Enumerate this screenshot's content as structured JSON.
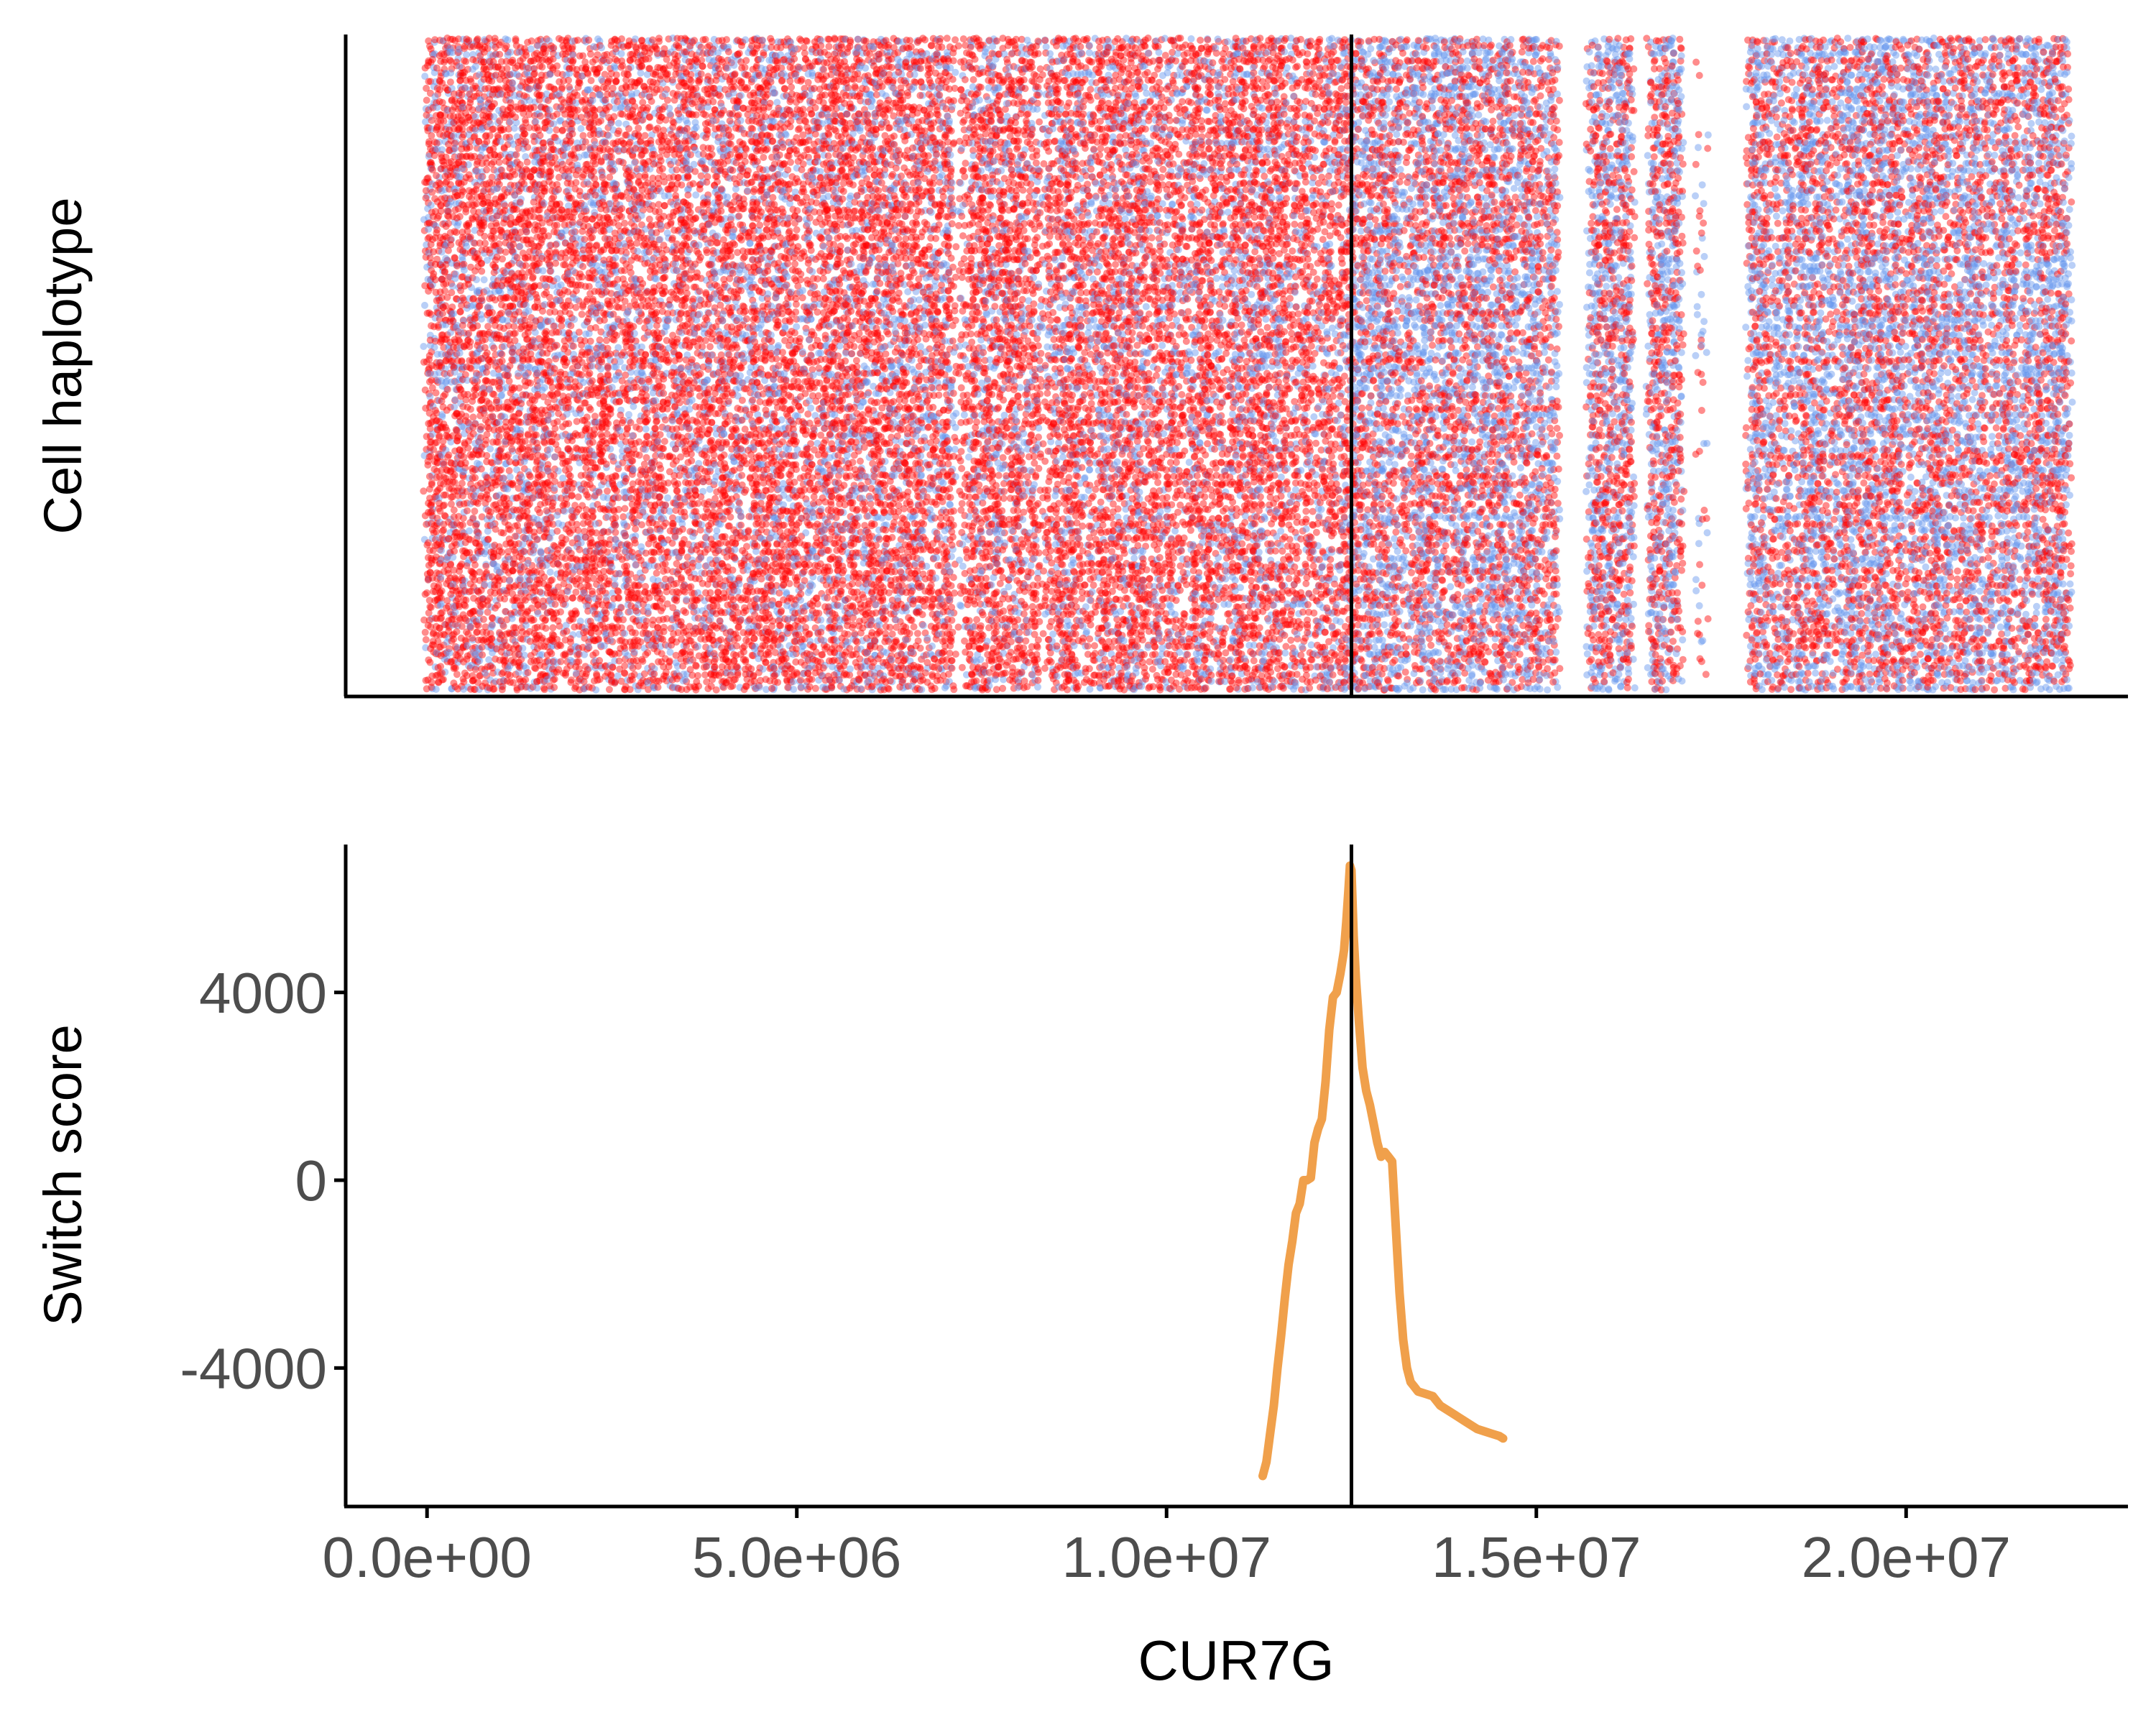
{
  "chart_data": [
    {
      "type": "scatter",
      "ylabel": "Cell haplotype",
      "xlim": [
        -1100000,
        23000000
      ],
      "x_breakpoint": 12500000,
      "snp_x_range": [
        0,
        22200000
      ],
      "gaps": [
        [
          15300000,
          15700000
        ],
        [
          16300000,
          16500000
        ],
        [
          16980000,
          17150000
        ],
        [
          17300000,
          17850000
        ]
      ],
      "sparse_ranges": [
        [
          17150000,
          17300000
        ]
      ],
      "cell_rows": 96,
      "series": [
        {
          "color": "#ff0000"
        },
        {
          "color": "#6495ed"
        }
      ],
      "colors": {
        "hap_a": "#ff0000",
        "hap_b": "#6495ed"
      },
      "grid": false
    },
    {
      "type": "line",
      "ylabel": "Switch score",
      "xlabel": "CUR7G",
      "xlim": [
        -1100000,
        23000000
      ],
      "ylim": [
        -6950.0,
        7150
      ],
      "x_ticks": [
        0,
        5000000,
        10000000,
        15000000,
        20000000
      ],
      "x_tick_labels": [
        "0.0e+00",
        "5.0e+06",
        "1.0e+07",
        "1.5e+07",
        "2.0e+07"
      ],
      "y_ticks": [
        4000,
        0,
        -4000
      ],
      "y_tick_labels": [
        "4000",
        "0",
        "-4000"
      ],
      "x_breakpoint": 12500000,
      "line_color": "#f0a04b",
      "x": [
        11300000,
        11350000,
        11400000,
        11450000,
        11500000,
        11550000,
        11600000,
        11650000,
        11700000,
        11750000,
        11800000,
        11850000,
        11900000,
        11950000,
        12000000,
        12050000,
        12100000,
        12150000,
        12200000,
        12250000,
        12300000,
        12350000,
        12400000,
        12430000,
        12460000,
        12480000,
        12500000,
        12530000,
        12560000,
        12600000,
        12650000,
        12700000,
        12750000,
        12800000,
        12850000,
        12900000,
        12950000,
        13000000,
        13050000,
        13100000,
        13150000,
        13200000,
        13250000,
        13300000,
        13350000,
        13400000,
        13500000,
        13600000,
        13700000,
        13800000,
        13900000,
        14000000,
        14100000,
        14200000,
        14300000,
        14400000,
        14500000,
        14550000
      ],
      "y": [
        -6300,
        -6000,
        -5400,
        -4800,
        -4000,
        -3300,
        -2500,
        -1800,
        -1300,
        -700,
        -500,
        0,
        0,
        50,
        800,
        1100,
        1300,
        2100,
        3200,
        3900,
        4000,
        4400,
        4900,
        5500,
        6200,
        6700,
        6600,
        5200,
        4300,
        3400,
        2400,
        1900,
        1600,
        1200,
        800,
        500,
        600,
        500,
        400,
        -1000,
        -2400,
        -3400,
        -4000,
        -4300,
        -4400,
        -4500,
        -4550,
        -4600,
        -4800,
        -4900,
        -5000,
        -5100,
        -5200,
        -5300,
        -5350,
        -5400,
        -5450,
        -5500
      ]
    }
  ]
}
